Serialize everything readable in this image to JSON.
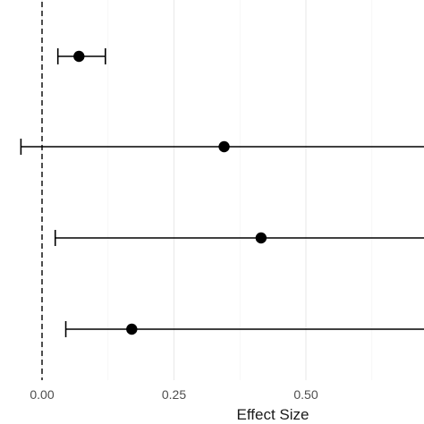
{
  "chart_data": {
    "type": "scatter",
    "subtype": "forest-plot",
    "title": "",
    "xlabel": "Effect Size",
    "ylabel": "",
    "x_ticks": [
      0.0,
      0.25,
      0.5
    ],
    "x_tick_labels": [
      "0.00",
      "0.25",
      "0.50"
    ],
    "xlim": [
      -0.08,
      0.73
    ],
    "reference_line": {
      "x": 0.0,
      "style": "dashed"
    },
    "grid": true,
    "legend": "none",
    "rows": [
      {
        "estimate": 0.07,
        "ci_low": 0.03,
        "ci_high": 0.12
      },
      {
        "estimate": 0.345,
        "ci_low": -0.04,
        "ci_high": 0.73
      },
      {
        "estimate": 0.415,
        "ci_low": 0.025,
        "ci_high": 0.73
      },
      {
        "estimate": 0.17,
        "ci_low": 0.045,
        "ci_high": 0.73
      }
    ],
    "colors": {
      "points": "#000000",
      "grid": "#ebebeb",
      "background": "#ffffff"
    }
  }
}
